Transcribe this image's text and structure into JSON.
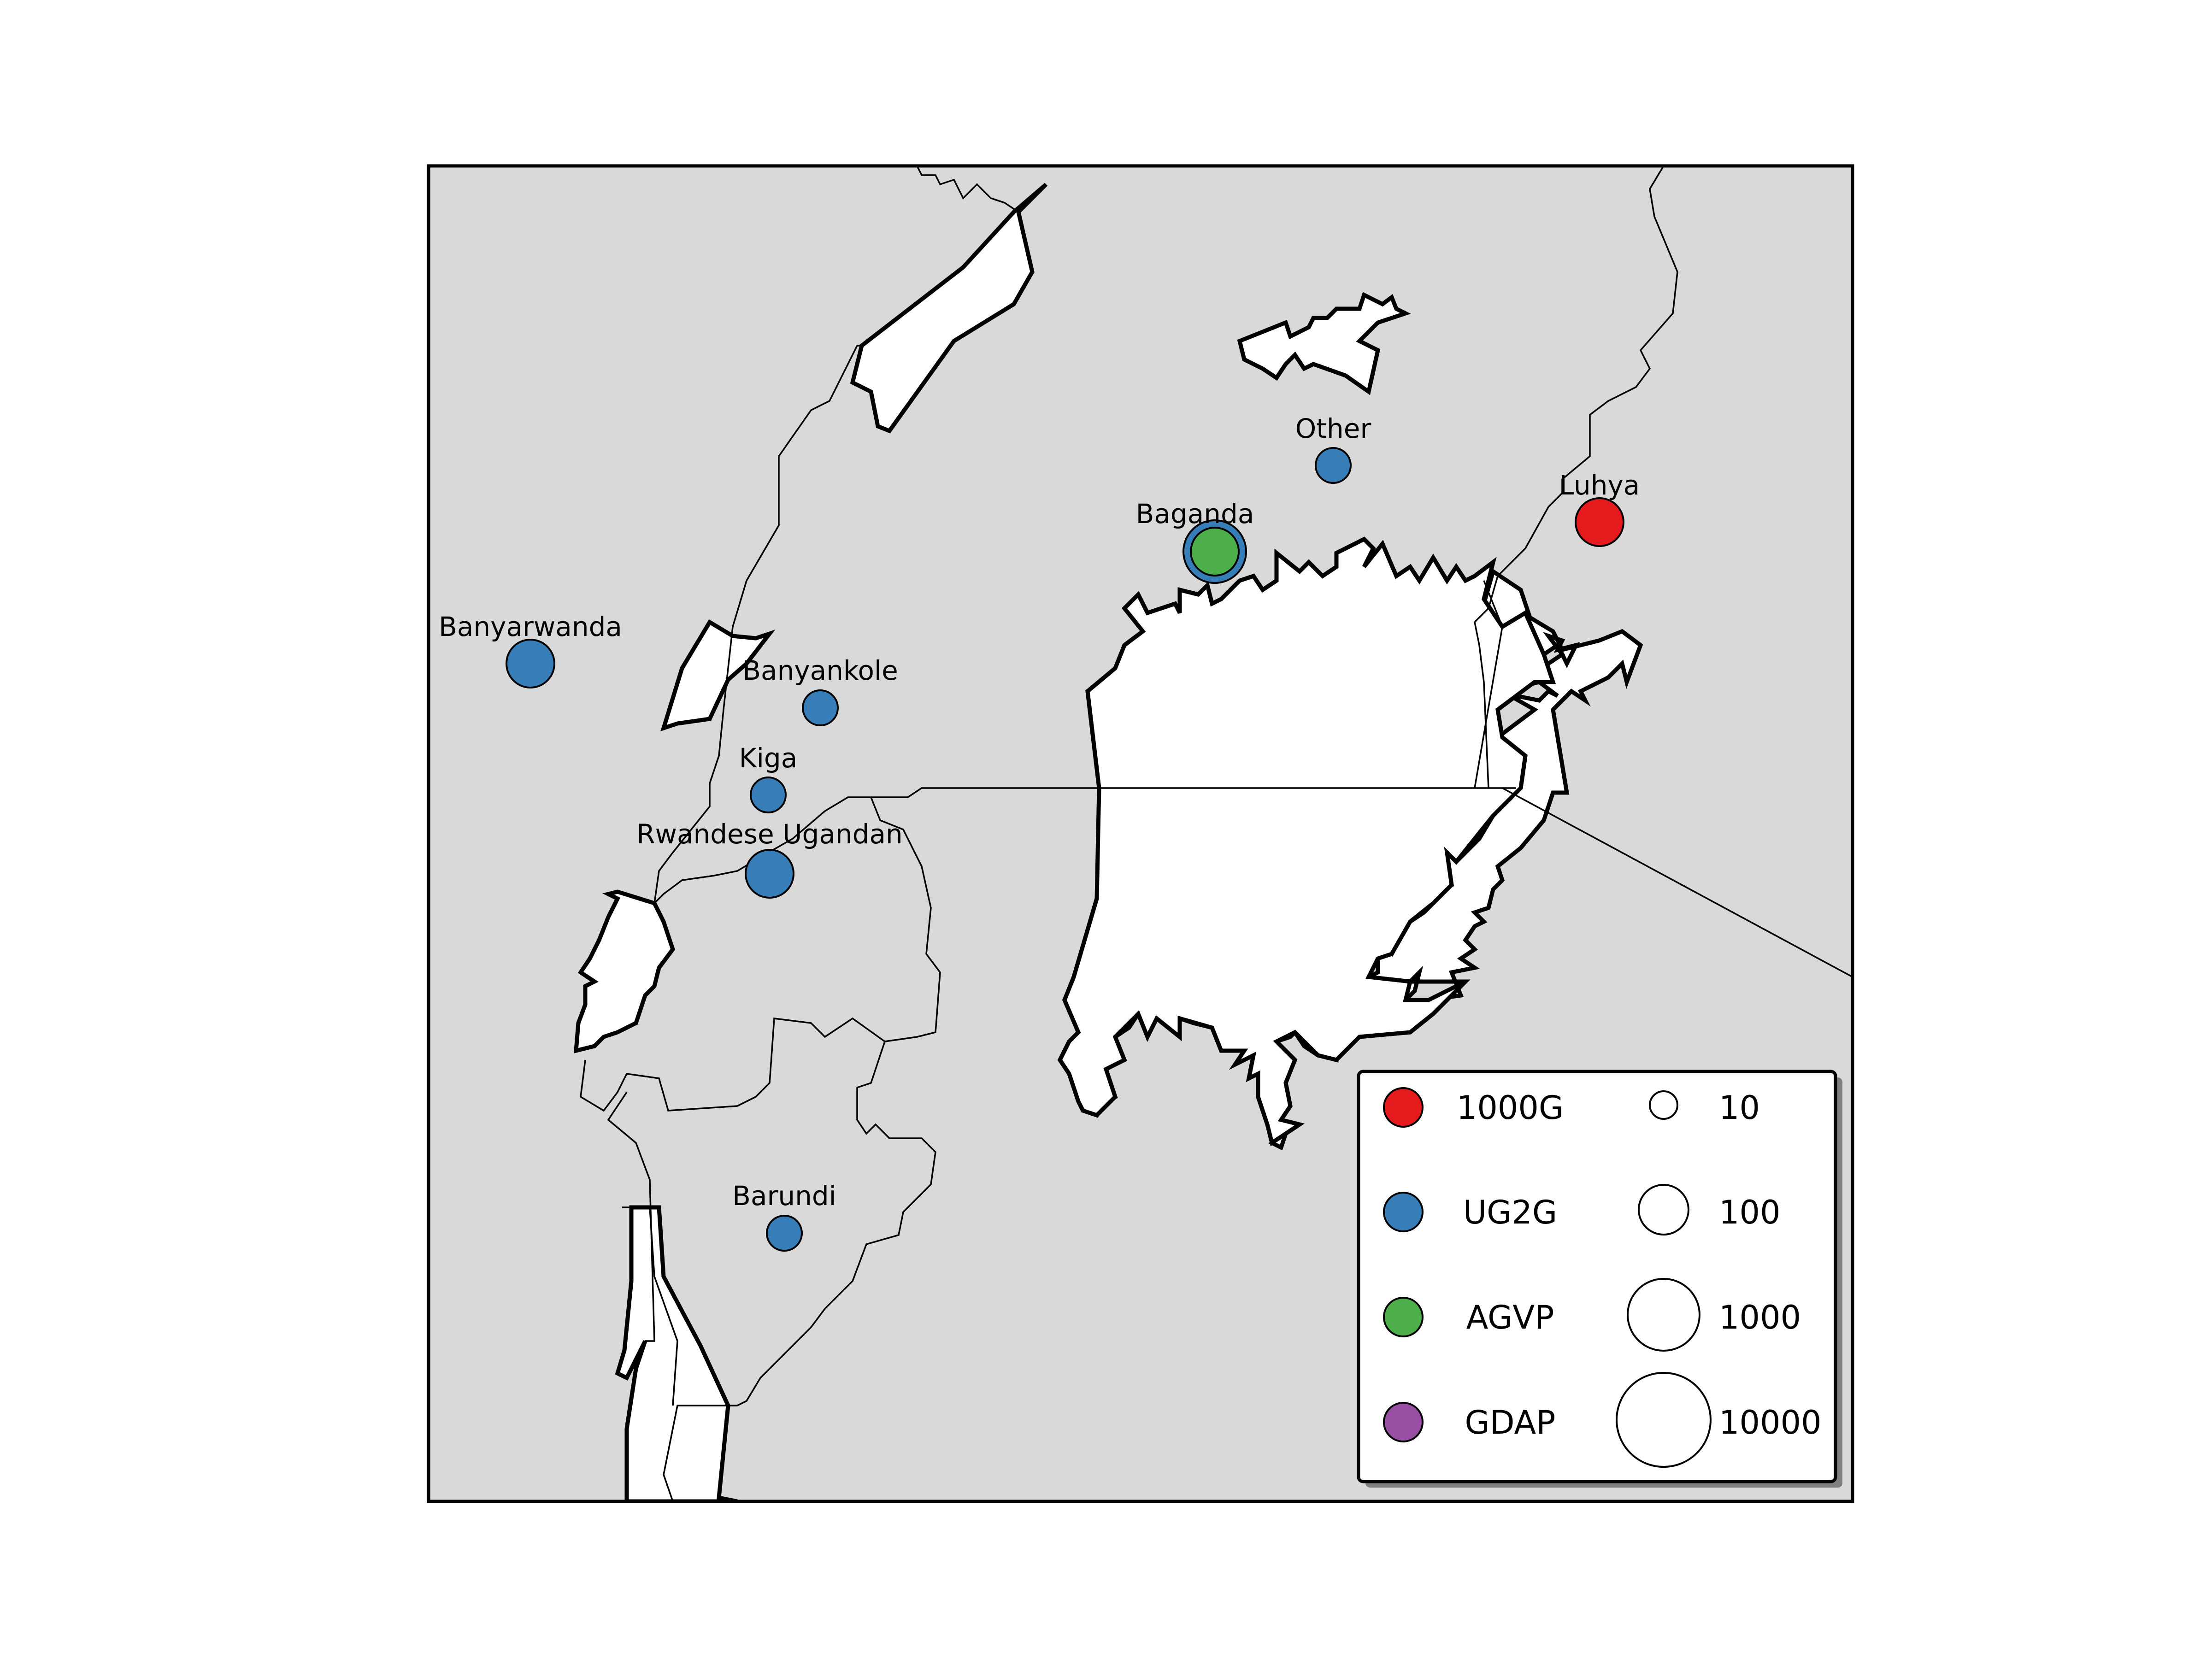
{
  "map": {
    "colors": {
      "land": "#d9d9d9",
      "water": "#ffffff",
      "border": "#000000"
    },
    "sites": [
      {
        "name": "Other",
        "group": "UG2G",
        "size_class": "small"
      },
      {
        "name": "Luhya",
        "group": "1000G",
        "size_class": "medium"
      },
      {
        "name": "Baganda",
        "group": "UG2G",
        "size_class": "large"
      },
      {
        "name": "Banyarwanda",
        "group": "UG2G",
        "size_class": "medium"
      },
      {
        "name": "Banyankole",
        "group": "UG2G",
        "size_class": "small"
      },
      {
        "name": "Kiga",
        "group": "UG2G",
        "size_class": "small"
      },
      {
        "name": "Rwandese Ugandan",
        "group": "UG2G",
        "size_class": "medium"
      },
      {
        "name": "Barundi",
        "group": "UG2G",
        "size_class": "small"
      }
    ],
    "overlay": {
      "name": "Baganda",
      "group": "AGVP",
      "size_class": "medium"
    }
  },
  "legend": {
    "groups": [
      {
        "label": "1000G",
        "color": "#e41a1c"
      },
      {
        "label": "UG2G",
        "color": "#377eb8"
      },
      {
        "label": "AGVP",
        "color": "#4daf4a"
      },
      {
        "label": "GDAP",
        "color": "#984ea3"
      }
    ],
    "sizes": [
      {
        "label": "10",
        "value": 10
      },
      {
        "label": "100",
        "value": 100
      },
      {
        "label": "1000",
        "value": 1000
      },
      {
        "label": "10000",
        "value": 10000
      }
    ]
  }
}
